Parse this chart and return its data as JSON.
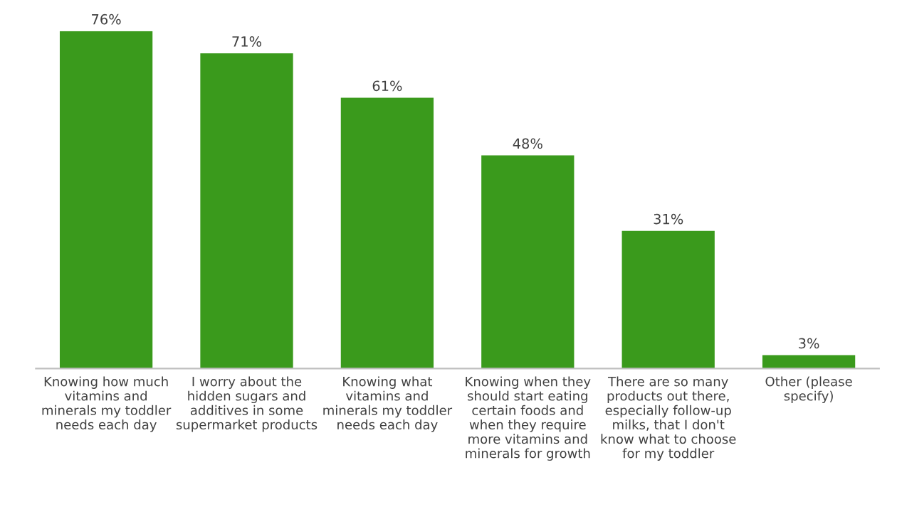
{
  "chart_data": {
    "type": "bar",
    "categories": [
      "Knowing how much vitamins and minerals my toddler needs each day",
      "I worry about the hidden sugars and additives in some supermarket products",
      "Knowing what vitamins and minerals my toddler needs each day",
      "Knowing when they should start eating certain foods and when they require more vitamins and minerals for growth",
      "There are so many products out there, especially follow-up milks, that I don't know what to choose for my toddler",
      "Other (please specify)"
    ],
    "values": [
      76,
      71,
      61,
      48,
      31,
      3
    ],
    "value_labels": [
      "76%",
      "71%",
      "61%",
      "48%",
      "31%",
      "3%"
    ],
    "color": "#3a9a1c"
  }
}
